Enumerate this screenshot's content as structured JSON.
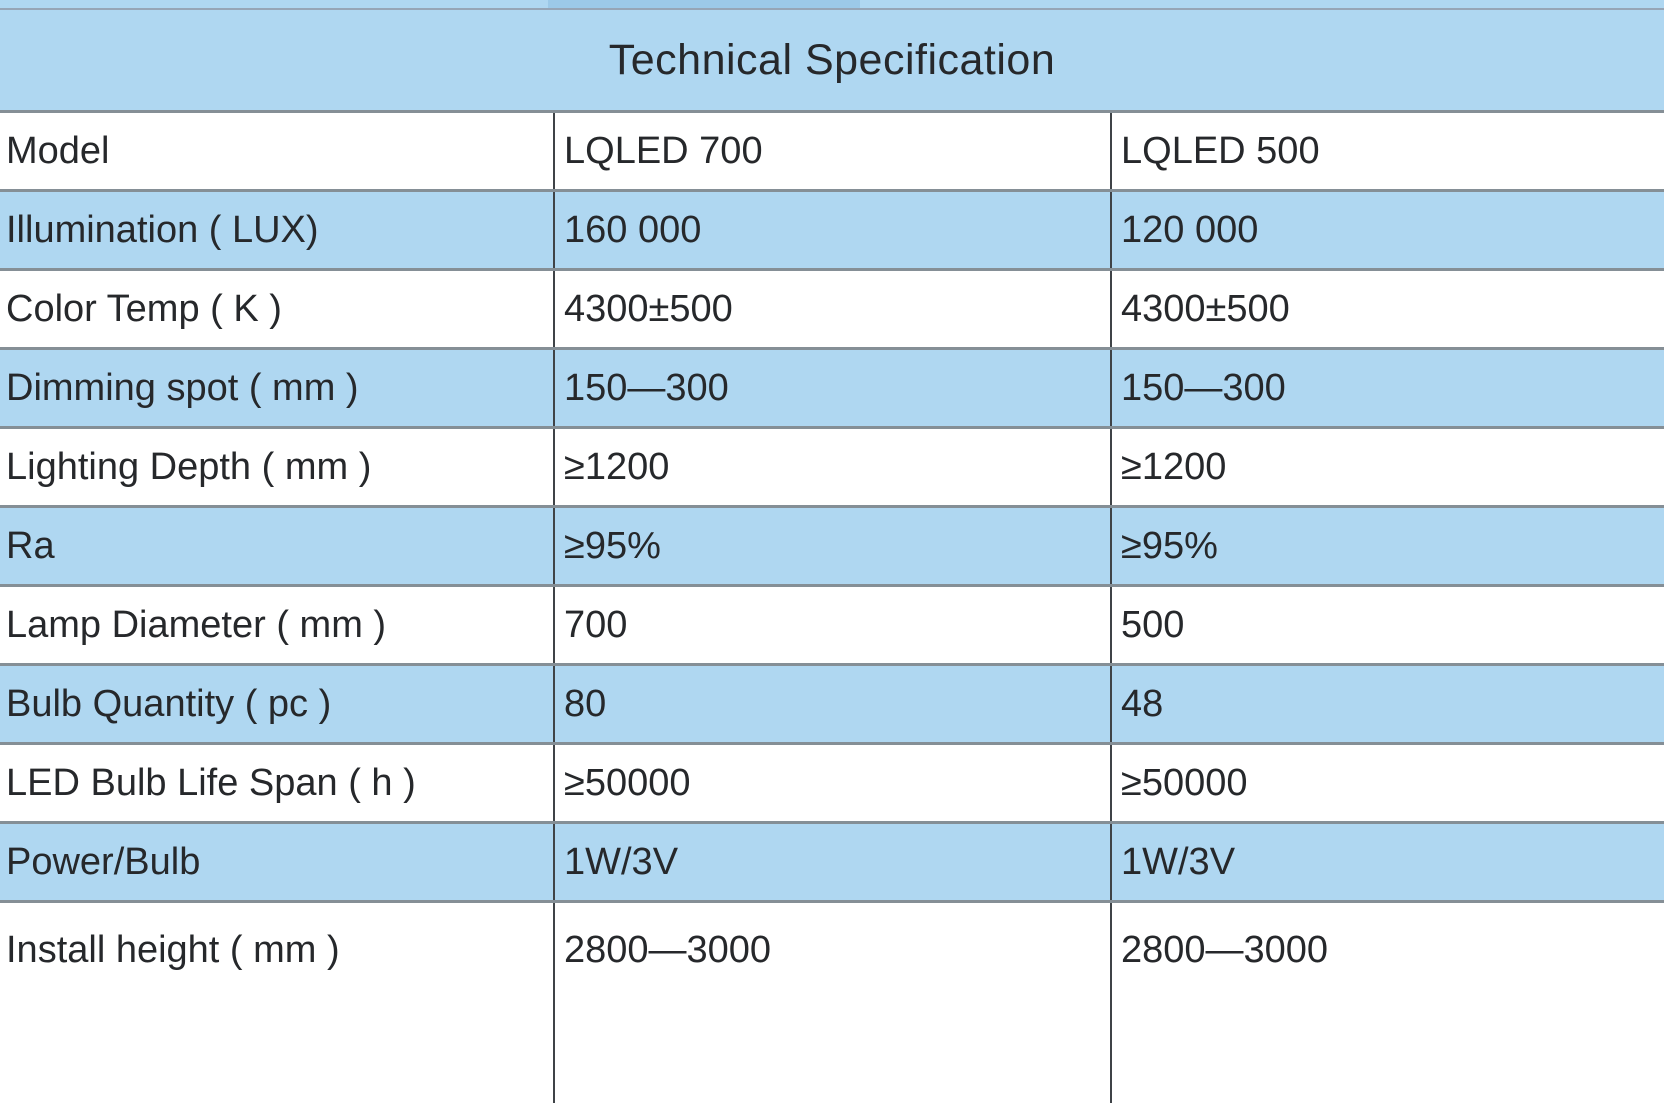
{
  "table": {
    "title": "Technical Specification",
    "rows": [
      [
        "Model",
        "LQLED 700",
        "LQLED 500"
      ],
      [
        "Illumination ( LUX)",
        "160 000",
        "120 000"
      ],
      [
        "Color Temp ( K )",
        "4300±500",
        "4300±500"
      ],
      [
        "Dimming spot ( mm )",
        "150—300",
        "150—300"
      ],
      [
        "Lighting Depth ( mm )",
        "≥1200",
        "≥1200"
      ],
      [
        "Ra",
        "≥95%",
        "≥95%"
      ],
      [
        "Lamp Diameter ( mm )",
        "700",
        "500"
      ],
      [
        "Bulb Quantity ( pc )",
        "80",
        "48"
      ],
      [
        "LED Bulb Life Span ( h )",
        "≥50000",
        "≥50000"
      ],
      [
        "Power/Bulb",
        "1W/3V",
        "1W/3V"
      ],
      [
        "Install height ( mm )",
        "2800—3000",
        "2800—3000"
      ]
    ]
  },
  "colors": {
    "row_blue": "#AFD7F1",
    "grid_gray": "#858F96",
    "divider_dark": "#3F4347",
    "text": "#26282B",
    "top_line": "#96A5B6",
    "top_segment": "#9CC9E8"
  }
}
